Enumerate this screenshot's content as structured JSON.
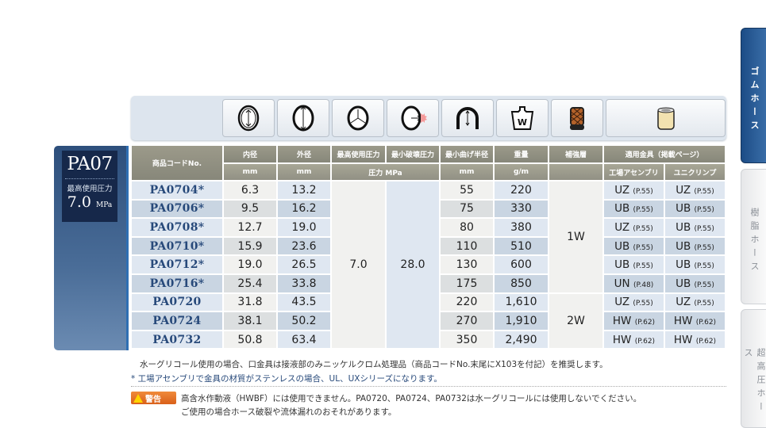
{
  "side_tabs": [
    "ゴムホース",
    "樹脂ホース",
    "超高圧ホース"
  ],
  "active_tab": "ゴムホース",
  "icons": [
    "inner-diameter-icon",
    "outer-diameter-icon",
    "max-pressure-icon",
    "burst-pressure-icon",
    "bend-radius-icon",
    "weight-icon",
    "reinforcement-icon",
    "fitting-icon"
  ],
  "series": {
    "name": "PA07",
    "pressure_label": "最高使用圧力",
    "pressure_value": "7.0",
    "pressure_unit": "MPa"
  },
  "table": {
    "headers": {
      "code": "商品コードNo.",
      "inner": "内径",
      "outer": "外径",
      "max_pressure": "最高使用圧力",
      "burst": "最小破壊圧力",
      "bend": "最小曲げ半径",
      "weight": "重量",
      "layer": "補強層",
      "fittings": "適用金具（掲載ページ）",
      "unit_mm": "mm",
      "unit_mpa": "圧力 MPa",
      "unit_gm": "g/m",
      "factory": "工場アセンブリ",
      "unicrimp": "ユニクリンプ"
    },
    "max_pressure": "7.0",
    "burst_pressure": "28.0",
    "layers": [
      "1W",
      "2W"
    ],
    "rows": [
      {
        "code": "PA0704*",
        "inner": "6.3",
        "outer": "13.2",
        "bend": "55",
        "weight": "220",
        "factory": "UZ",
        "factory_p": "(P.55)",
        "uni": "UZ",
        "uni_p": "(P.55)"
      },
      {
        "code": "PA0706*",
        "inner": "9.5",
        "outer": "16.2",
        "bend": "75",
        "weight": "330",
        "factory": "UB",
        "factory_p": "(P.55)",
        "uni": "UB",
        "uni_p": "(P.55)"
      },
      {
        "code": "PA0708*",
        "inner": "12.7",
        "outer": "19.0",
        "bend": "80",
        "weight": "380",
        "factory": "UZ",
        "factory_p": "(P.55)",
        "uni": "UB",
        "uni_p": "(P.55)"
      },
      {
        "code": "PA0710*",
        "inner": "15.9",
        "outer": "23.6",
        "bend": "110",
        "weight": "510",
        "factory": "UB",
        "factory_p": "(P.55)",
        "uni": "UB",
        "uni_p": "(P.55)"
      },
      {
        "code": "PA0712*",
        "inner": "19.0",
        "outer": "26.5",
        "bend": "130",
        "weight": "600",
        "factory": "UB",
        "factory_p": "(P.55)",
        "uni": "UB",
        "uni_p": "(P.55)"
      },
      {
        "code": "PA0716*",
        "inner": "25.4",
        "outer": "33.8",
        "bend": "175",
        "weight": "850",
        "factory": "UN",
        "factory_p": "(P.48)",
        "uni": "UB",
        "uni_p": "(P.55)"
      },
      {
        "code": "PA0720",
        "inner": "31.8",
        "outer": "43.5",
        "bend": "220",
        "weight": "1,610",
        "factory": "UZ",
        "factory_p": "(P.55)",
        "uni": "UZ",
        "uni_p": "(P.55)"
      },
      {
        "code": "PA0724",
        "inner": "38.1",
        "outer": "50.2",
        "bend": "270",
        "weight": "1,910",
        "factory": "HW",
        "factory_p": "(P.62)",
        "uni": "HW",
        "uni_p": "(P.62)"
      },
      {
        "code": "PA0732",
        "inner": "50.8",
        "outer": "63.4",
        "bend": "350",
        "weight": "2,490",
        "factory": "HW",
        "factory_p": "(P.62)",
        "uni": "HW",
        "uni_p": "(P.62)"
      }
    ]
  },
  "notes": [
    "水ーグリコール使用の場合、口金具は接液部のみニッケルクロム処理品（商品コードNo.末尾にX103を付記）を推奨します。",
    "* 工場アセンブリで金具の材質がステンレスの場合、UL、UXシリーズになります。"
  ],
  "warning": {
    "label": "警告",
    "lines": [
      "高含水作動液（HWBF）には使用できません。PA0720、PA0724、PA0732は水ーグリコールには使用しないでください。",
      "ご使用の場合ホース破裂や流体漏れのおそれがあります。"
    ]
  },
  "colors": {
    "accent": "#27497a",
    "header": "#8f8e80",
    "tab_active": "#1c4c86",
    "warning": "#e0701f"
  }
}
